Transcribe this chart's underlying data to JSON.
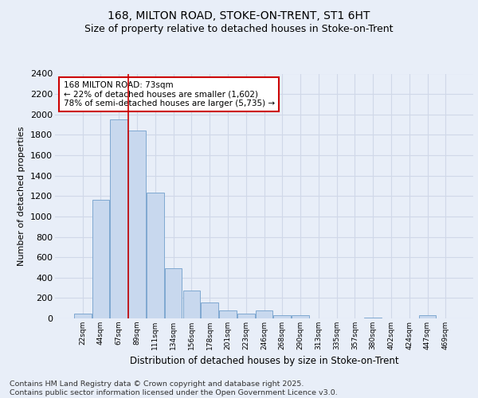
{
  "title1": "168, MILTON ROAD, STOKE-ON-TRENT, ST1 6HT",
  "title2": "Size of property relative to detached houses in Stoke-on-Trent",
  "xlabel": "Distribution of detached houses by size in Stoke-on-Trent",
  "ylabel": "Number of detached properties",
  "categories": [
    "22sqm",
    "44sqm",
    "67sqm",
    "89sqm",
    "111sqm",
    "134sqm",
    "156sqm",
    "178sqm",
    "201sqm",
    "223sqm",
    "246sqm",
    "268sqm",
    "290sqm",
    "313sqm",
    "335sqm",
    "357sqm",
    "380sqm",
    "402sqm",
    "424sqm",
    "447sqm",
    "469sqm"
  ],
  "values": [
    50,
    1160,
    1950,
    1840,
    1230,
    490,
    270,
    160,
    80,
    50,
    80,
    30,
    30,
    0,
    0,
    0,
    10,
    0,
    0,
    30,
    0
  ],
  "bar_color": "#c8d8ee",
  "bar_edgecolor": "#7fa8d0",
  "vline_x": 2.5,
  "vline_color": "#cc0000",
  "annotation_text": "168 MILTON ROAD: 73sqm\n← 22% of detached houses are smaller (1,602)\n78% of semi-detached houses are larger (5,735) →",
  "annotation_box_color": "#ffffff",
  "annotation_box_edgecolor": "#cc0000",
  "ylim": [
    0,
    2400
  ],
  "yticks": [
    0,
    200,
    400,
    600,
    800,
    1000,
    1200,
    1400,
    1600,
    1800,
    2000,
    2200,
    2400
  ],
  "background_color": "#e8eef8",
  "plot_bg_color": "#e8eef8",
  "grid_color": "#d0d8e8",
  "footer": "Contains HM Land Registry data © Crown copyright and database right 2025.\nContains public sector information licensed under the Open Government Licence v3.0.",
  "title_fontsize": 10,
  "subtitle_fontsize": 9,
  "annotation_fontsize": 7.5,
  "footer_fontsize": 6.8,
  "ylabel_fontsize": 8,
  "xlabel_fontsize": 8.5,
  "ytick_fontsize": 8,
  "xtick_fontsize": 6.5
}
